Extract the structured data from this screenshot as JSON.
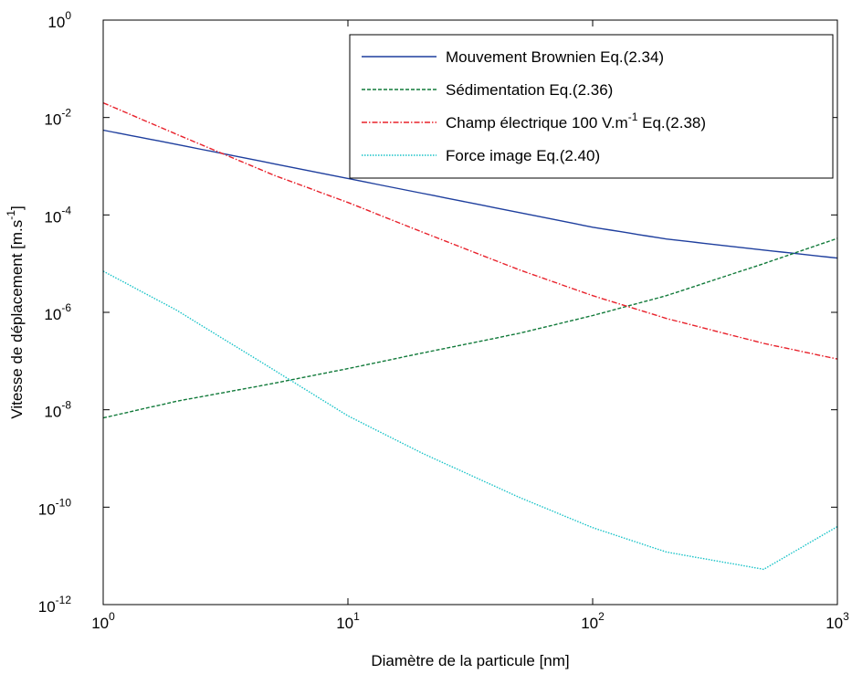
{
  "chart_data": {
    "type": "line",
    "xlabel": "Diamètre de la particule [nm]",
    "ylabel": {
      "base": "Vitesse de déplacement [m.s",
      "sup": "-1",
      "tail": "]"
    },
    "x_scale": "log",
    "y_scale": "log",
    "xlim": [
      1,
      1000
    ],
    "ylim": [
      1e-12,
      1
    ],
    "x_ticks": [
      {
        "base": "10",
        "exp": "0"
      },
      {
        "base": "10",
        "exp": "1"
      },
      {
        "base": "10",
        "exp": "2"
      },
      {
        "base": "10",
        "exp": "3"
      }
    ],
    "y_ticks": [
      {
        "base": "10",
        "exp": "0"
      },
      {
        "base": "10",
        "exp": "-2"
      },
      {
        "base": "10",
        "exp": "-4"
      },
      {
        "base": "10",
        "exp": "-6"
      },
      {
        "base": "10",
        "exp": "-8"
      },
      {
        "base": "10",
        "exp": "-10"
      },
      {
        "base": "10",
        "exp": "-12"
      }
    ],
    "grid": false,
    "legend_position": "top-right",
    "series": [
      {
        "label": "Mouvement Brownien Eq.(2.34)",
        "color": "#1f3f9e",
        "style": "solid",
        "x": [
          1,
          2,
          5,
          10,
          20,
          50,
          100,
          200,
          500,
          1000
        ],
        "y": [
          0.0055,
          0.0028,
          0.00112,
          0.00056,
          0.00028,
          0.000112,
          5.6e-05,
          3.2e-05,
          1.9e-05,
          1.3e-05
        ]
      },
      {
        "label": "Sédimentation Eq.(2.36)",
        "color": "#117a3a",
        "style": "dashed",
        "x": [
          1,
          2,
          5,
          10,
          20,
          50,
          100,
          200,
          500,
          1000
        ],
        "y": [
          6.8e-09,
          1.5e-08,
          3.5e-08,
          7e-08,
          1.45e-07,
          3.7e-07,
          8.6e-07,
          2.2e-06,
          1e-05,
          3.3e-05
        ]
      },
      {
        "label": {
          "base": "Champ électrique 100 V.m",
          "sup": "-1",
          "tail": " Eq.(2.38)"
        },
        "color": "#e8202a",
        "style": "dashdot",
        "x": [
          1,
          2,
          5,
          10,
          20,
          50,
          100,
          200,
          500,
          1000
        ],
        "y": [
          0.02,
          0.0045,
          0.00065,
          0.00018,
          4.5e-05,
          7.5e-06,
          2.2e-06,
          7.5e-07,
          2.3e-07,
          1.1e-07
        ]
      },
      {
        "label": "Force image Eq.(2.40)",
        "color": "#19c3c8",
        "style": "dotted",
        "x": [
          1,
          2,
          5,
          10,
          20,
          50,
          100,
          200,
          500,
          1000
        ],
        "y": [
          7e-06,
          1.1e-06,
          6.5e-08,
          7.5e-09,
          1.3e-09,
          1.6e-10,
          3.8e-11,
          1.2e-11,
          5.3e-12,
          4e-11
        ]
      }
    ]
  }
}
